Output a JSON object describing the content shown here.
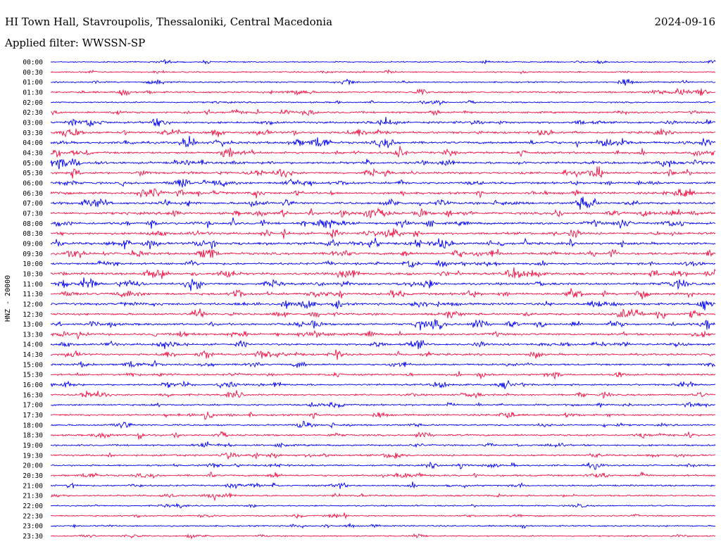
{
  "header": {
    "title": "HI Town Hall, Stavroupolis, Thessaloniki, Central Macedonia",
    "date": "2024-09-16",
    "filter": "Applied filter: WWSSN-SP"
  },
  "chart_data": {
    "type": "line",
    "title": "HI Town Hall, Stavroupolis, Thessaloniki, Central Macedonia",
    "ylabel": "HNZ - 20000",
    "xlabel": "",
    "row_labels": [
      "00:00",
      "00:30",
      "01:00",
      "01:30",
      "02:00",
      "02:30",
      "03:00",
      "03:30",
      "04:00",
      "04:30",
      "05:00",
      "05:30",
      "06:00",
      "06:30",
      "07:00",
      "07:30",
      "08:00",
      "08:30",
      "09:00",
      "09:30",
      "10:00",
      "10:30",
      "11:00",
      "11:30",
      "12:00",
      "12:30",
      "13:00",
      "13:30",
      "14:00",
      "14:30",
      "15:00",
      "15:30",
      "16:00",
      "16:30",
      "17:00",
      "17:30",
      "18:00",
      "18:30",
      "19:00",
      "19:30",
      "20:00",
      "20:30",
      "21:00",
      "21:30",
      "22:00",
      "22:30",
      "23:00",
      "23:30"
    ],
    "trace_colors": [
      "#0000ee",
      "#ee1144"
    ],
    "row_activity": [
      0.25,
      0.3,
      0.35,
      0.55,
      0.35,
      0.6,
      0.7,
      0.75,
      0.85,
      0.75,
      0.8,
      0.75,
      0.75,
      0.8,
      0.8,
      0.85,
      0.85,
      0.8,
      0.9,
      0.85,
      0.75,
      0.85,
      0.8,
      0.85,
      0.8,
      0.75,
      0.75,
      0.75,
      0.65,
      0.65,
      0.55,
      0.55,
      0.55,
      0.55,
      0.5,
      0.55,
      0.5,
      0.55,
      0.5,
      0.55,
      0.5,
      0.55,
      0.45,
      0.4,
      0.3,
      0.35,
      0.35,
      0.3
    ],
    "grid": false
  }
}
